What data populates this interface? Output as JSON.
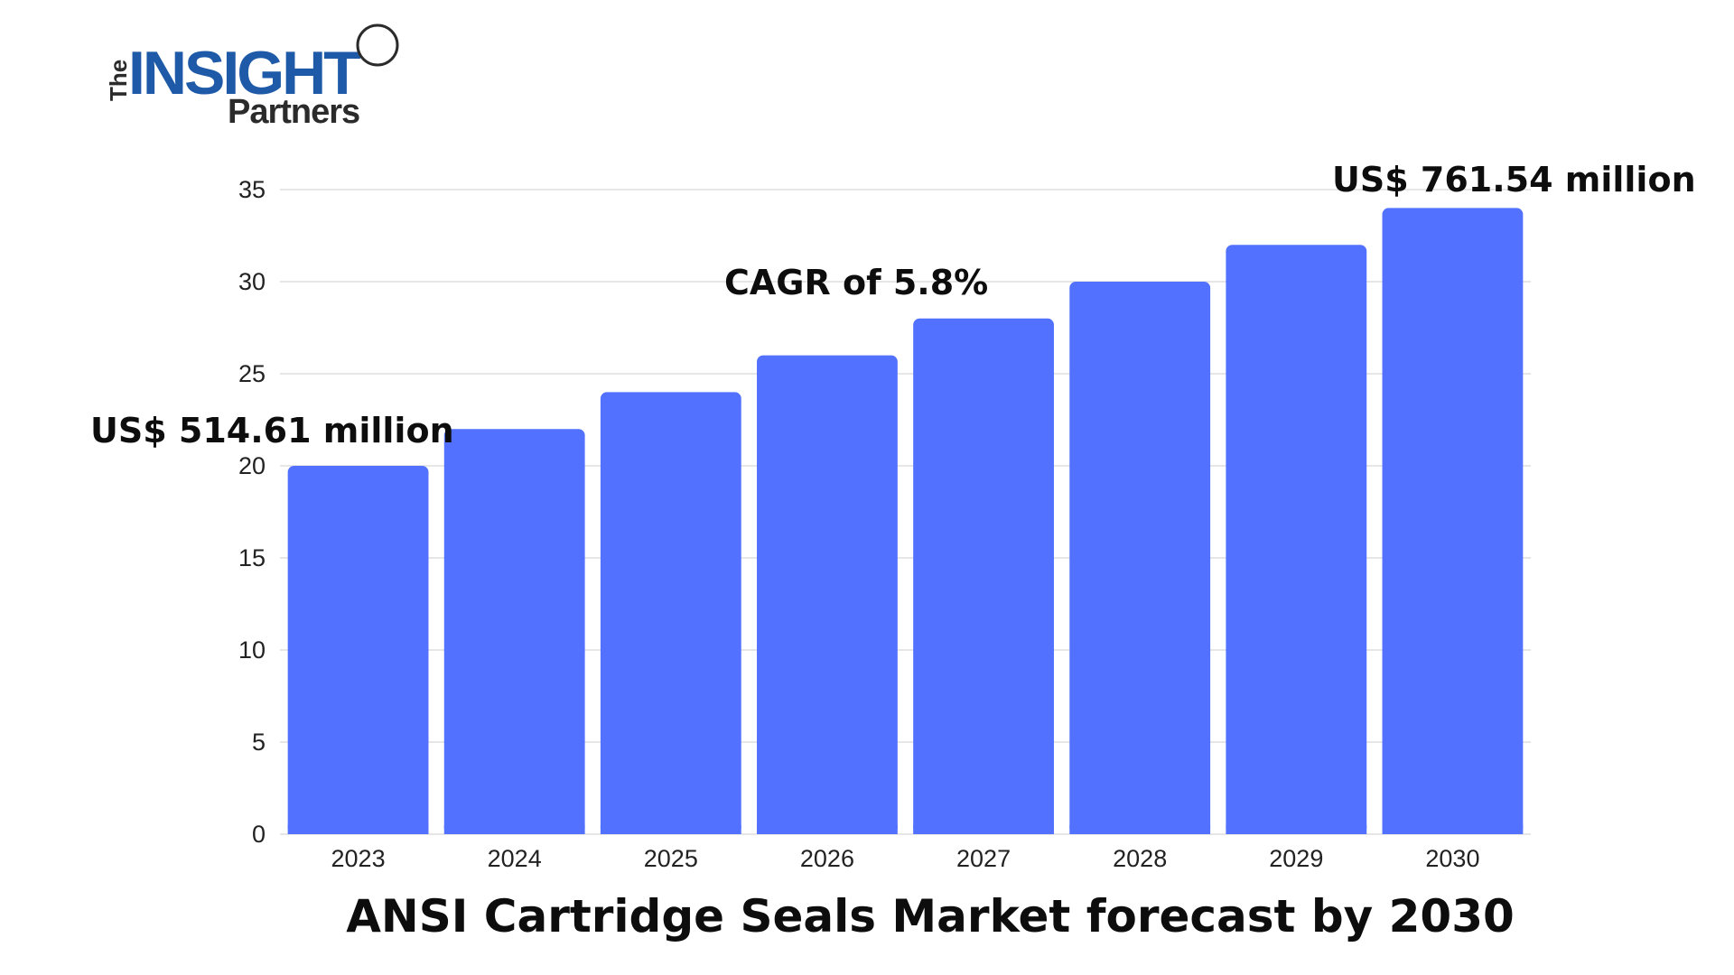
{
  "logo": {
    "the": "The",
    "insight": "INSIGHT",
    "partners": "Partners",
    "colors": {
      "insight": "#1e5aa8",
      "dark": "#2b2b2b"
    }
  },
  "chart_data": {
    "type": "bar",
    "title": "ANSI Cartridge Seals Market forecast by 2030",
    "xlabel": "",
    "ylabel": "",
    "categories": [
      "2023",
      "2024",
      "2025",
      "2026",
      "2027",
      "2028",
      "2029",
      "2030"
    ],
    "values": [
      20,
      22,
      24,
      26,
      28,
      30,
      32,
      34
    ],
    "ylim": [
      0,
      35
    ],
    "yticks": [
      0,
      5,
      10,
      15,
      20,
      25,
      30,
      35
    ],
    "grid": true,
    "legend": "none",
    "bar_color": "#5271ff",
    "annotations": {
      "start": "US$ 514.61 million",
      "cagr": "CAGR of 5.8%",
      "end": "US$ 761.54 million"
    }
  }
}
